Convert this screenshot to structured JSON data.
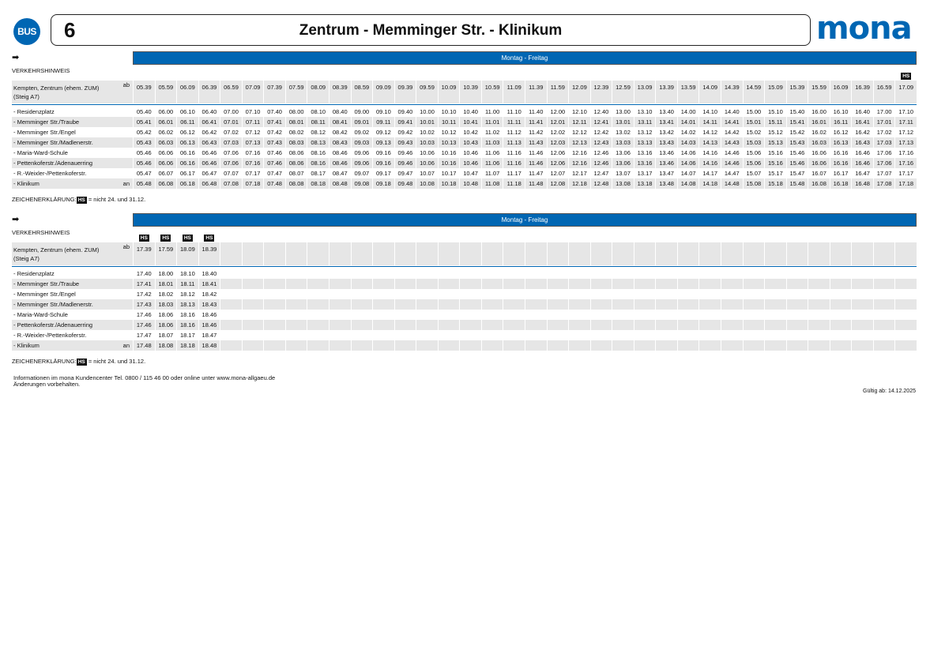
{
  "header": {
    "badge": "BUS",
    "line": "6",
    "title": "Zentrum - Memminger Str. - Klinikum",
    "logo": "mona",
    "brand_color": "#0066b3"
  },
  "stops": [
    {
      "name": "- Residenzplatz",
      "mark": ""
    },
    {
      "name": "- Memminger Str./Traube",
      "mark": ""
    },
    {
      "name": "- Memminger Str./Engel",
      "mark": ""
    },
    {
      "name": "- Memminger Str./Madlenerstr.",
      "mark": ""
    },
    {
      "name": "- Maria-Ward-Schule",
      "mark": ""
    },
    {
      "name": "- Pettenkoferstr./Adenauerring",
      "mark": ""
    },
    {
      "name": "- R.-Weixler-/Pettenkoferstr.",
      "mark": ""
    },
    {
      "name": "- Klinikum",
      "mark": "an"
    }
  ],
  "origin": {
    "line1": "Kempten, Zentrum (ehem. ZUM)",
    "line2": "(Steig A7)",
    "mark": "ab"
  },
  "tables": [
    {
      "day_label": "Montag - Freitag",
      "hint_label": "VERKEHRSHINWEIS",
      "hs": [
        "",
        "",
        "",
        "",
        "",
        "",
        "",
        "",
        "",
        "",
        "",
        "",
        "",
        "",
        "",
        "",
        "",
        "",
        "",
        "",
        "",
        "",
        "",
        "",
        "",
        "",
        "",
        "",
        "",
        "",
        "",
        "",
        "",
        "",
        "",
        "HS"
      ],
      "departures": [
        "05.39",
        "05.59",
        "06.09",
        "06.39",
        "06.59",
        "07.09",
        "07.39",
        "07.59",
        "08.09",
        "08.39",
        "08.59",
        "09.09",
        "09.39",
        "09.59",
        "10.09",
        "10.39",
        "10.59",
        "11.09",
        "11.39",
        "11.59",
        "12.09",
        "12.39",
        "12.59",
        "13.09",
        "13.39",
        "13.59",
        "14.09",
        "14.39",
        "14.59",
        "15.09",
        "15.39",
        "15.59",
        "16.09",
        "16.39",
        "16.59",
        "17.09"
      ],
      "times": [
        [
          "05.40",
          "06.00",
          "06.10",
          "06.40",
          "07.00",
          "07.10",
          "07.40",
          "08.00",
          "08.10",
          "08.40",
          "09.00",
          "09.10",
          "09.40",
          "10.00",
          "10.10",
          "10.40",
          "11.00",
          "11.10",
          "11.40",
          "12.00",
          "12.10",
          "12.40",
          "13.00",
          "13.10",
          "13.40",
          "14.00",
          "14.10",
          "14.40",
          "15.00",
          "15.10",
          "15.40",
          "16.00",
          "16.10",
          "16.40",
          "17.00",
          "17.10"
        ],
        [
          "05.41",
          "06.01",
          "06.11",
          "06.41",
          "07.01",
          "07.11",
          "07.41",
          "08.01",
          "08.11",
          "08.41",
          "09.01",
          "09.11",
          "09.41",
          "10.01",
          "10.11",
          "10.41",
          "11.01",
          "11.11",
          "11.41",
          "12.01",
          "12.11",
          "12.41",
          "13.01",
          "13.11",
          "13.41",
          "14.01",
          "14.11",
          "14.41",
          "15.01",
          "15.11",
          "15.41",
          "16.01",
          "16.11",
          "16.41",
          "17.01",
          "17.11"
        ],
        [
          "05.42",
          "06.02",
          "06.12",
          "06.42",
          "07.02",
          "07.12",
          "07.42",
          "08.02",
          "08.12",
          "08.42",
          "09.02",
          "09.12",
          "09.42",
          "10.02",
          "10.12",
          "10.42",
          "11.02",
          "11.12",
          "11.42",
          "12.02",
          "12.12",
          "12.42",
          "13.02",
          "13.12",
          "13.42",
          "14.02",
          "14.12",
          "14.42",
          "15.02",
          "15.12",
          "15.42",
          "16.02",
          "16.12",
          "16.42",
          "17.02",
          "17.12"
        ],
        [
          "05.43",
          "06.03",
          "06.13",
          "06.43",
          "07.03",
          "07.13",
          "07.43",
          "08.03",
          "08.13",
          "08.43",
          "09.03",
          "09.13",
          "09.43",
          "10.03",
          "10.13",
          "10.43",
          "11.03",
          "11.13",
          "11.43",
          "12.03",
          "12.13",
          "12.43",
          "13.03",
          "13.13",
          "13.43",
          "14.03",
          "14.13",
          "14.43",
          "15.03",
          "15.13",
          "15.43",
          "16.03",
          "16.13",
          "16.43",
          "17.03",
          "17.13"
        ],
        [
          "05.46",
          "06.06",
          "06.16",
          "06.46",
          "07.06",
          "07.16",
          "07.46",
          "08.06",
          "08.16",
          "08.46",
          "09.06",
          "09.16",
          "09.46",
          "10.06",
          "10.16",
          "10.46",
          "11.06",
          "11.16",
          "11.46",
          "12.06",
          "12.16",
          "12.46",
          "13.06",
          "13.16",
          "13.46",
          "14.06",
          "14.16",
          "14.46",
          "15.06",
          "15.16",
          "15.46",
          "16.06",
          "16.16",
          "16.46",
          "17.06",
          "17.16"
        ],
        [
          "05.46",
          "06.06",
          "06.16",
          "06.46",
          "07.06",
          "07.16",
          "07.46",
          "08.06",
          "08.16",
          "08.46",
          "09.06",
          "09.16",
          "09.46",
          "10.06",
          "10.16",
          "10.46",
          "11.06",
          "11.16",
          "11.46",
          "12.06",
          "12.16",
          "12.46",
          "13.06",
          "13.16",
          "13.46",
          "14.06",
          "14.16",
          "14.46",
          "15.06",
          "15.16",
          "15.46",
          "16.06",
          "16.16",
          "16.46",
          "17.06",
          "17.16"
        ],
        [
          "05.47",
          "06.07",
          "06.17",
          "06.47",
          "07.07",
          "07.17",
          "07.47",
          "08.07",
          "08.17",
          "08.47",
          "09.07",
          "09.17",
          "09.47",
          "10.07",
          "10.17",
          "10.47",
          "11.07",
          "11.17",
          "11.47",
          "12.07",
          "12.17",
          "12.47",
          "13.07",
          "13.17",
          "13.47",
          "14.07",
          "14.17",
          "14.47",
          "15.07",
          "15.17",
          "15.47",
          "16.07",
          "16.17",
          "16.47",
          "17.07",
          "17.17"
        ],
        [
          "05.48",
          "06.08",
          "06.18",
          "06.48",
          "07.08",
          "07.18",
          "07.48",
          "08.08",
          "08.18",
          "08.48",
          "09.08",
          "09.18",
          "09.48",
          "10.08",
          "10.18",
          "10.48",
          "11.08",
          "11.18",
          "11.48",
          "12.08",
          "12.18",
          "12.48",
          "13.08",
          "13.18",
          "13.48",
          "14.08",
          "14.18",
          "14.48",
          "15.08",
          "15.18",
          "15.48",
          "16.08",
          "16.18",
          "16.48",
          "17.08",
          "17.18"
        ]
      ],
      "legend": {
        "label": "ZEICHENERKLÄRUNG:",
        "code": "HS",
        "text": "= nicht 24. und 31.12."
      }
    },
    {
      "day_label": "Montag - Freitag",
      "hint_label": "VERKEHRSHINWEIS",
      "hs": [
        "HS",
        "HS",
        "HS",
        "HS"
      ],
      "departures": [
        "17.39",
        "17.59",
        "18.09",
        "18.39"
      ],
      "times": [
        [
          "17.40",
          "18.00",
          "18.10",
          "18.40"
        ],
        [
          "17.41",
          "18.01",
          "18.11",
          "18.41"
        ],
        [
          "17.42",
          "18.02",
          "18.12",
          "18.42"
        ],
        [
          "17.43",
          "18.03",
          "18.13",
          "18.43"
        ],
        [
          "17.46",
          "18.06",
          "18.16",
          "18.46"
        ],
        [
          "17.46",
          "18.06",
          "18.16",
          "18.46"
        ],
        [
          "17.47",
          "18.07",
          "18.17",
          "18.47"
        ],
        [
          "17.48",
          "18.08",
          "18.18",
          "18.48"
        ]
      ],
      "legend": {
        "label": "ZEICHENERKLÄRUNG:",
        "code": "HS",
        "text": "= nicht 24. und 31.12."
      }
    }
  ],
  "footer": {
    "info_line1": "Informationen im mona Kundencenter Tel. 0800 / 115 46 00 oder online unter www.mona-allgaeu.de",
    "info_line2": "Änderungen vorbehalten.",
    "valid_from": "Gültig ab: 14.12.2025"
  }
}
